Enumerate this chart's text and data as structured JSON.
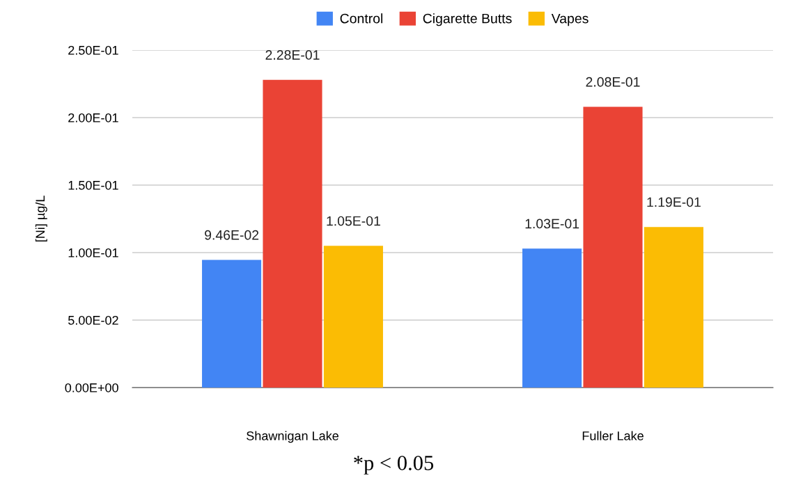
{
  "chart_data": {
    "type": "bar",
    "ylabel": "[Ni] µg/L",
    "categories": [
      "Shawnigan Lake",
      "Fuller Lake"
    ],
    "series": [
      {
        "name": "Control",
        "color": "#4285f4",
        "values": [
          0.0946,
          0.103
        ],
        "value_labels": [
          "9.46E-02",
          "1.03E-01"
        ]
      },
      {
        "name": "Cigarette Butts",
        "color": "#ea4335",
        "values": [
          0.228,
          0.208
        ],
        "value_labels": [
          "2.28E-01",
          "2.08E-01"
        ]
      },
      {
        "name": "Vapes",
        "color": "#fbbc04",
        "values": [
          0.105,
          0.119
        ],
        "value_labels": [
          "1.05E-01",
          "1.19E-01"
        ]
      }
    ],
    "ylim": [
      0,
      0.25
    ],
    "yticks": [
      {
        "value": 0,
        "label": "0.00E+00"
      },
      {
        "value": 0.05,
        "label": "5.00E-02"
      },
      {
        "value": 0.1,
        "label": "1.00E-01"
      },
      {
        "value": 0.15,
        "label": "1.50E-01"
      },
      {
        "value": 0.2,
        "label": "2.00E-01"
      },
      {
        "value": 0.25,
        "label": "2.50E-01"
      }
    ],
    "grid": "y",
    "legend": "top",
    "annotations": [
      "*p < 0.05"
    ]
  }
}
